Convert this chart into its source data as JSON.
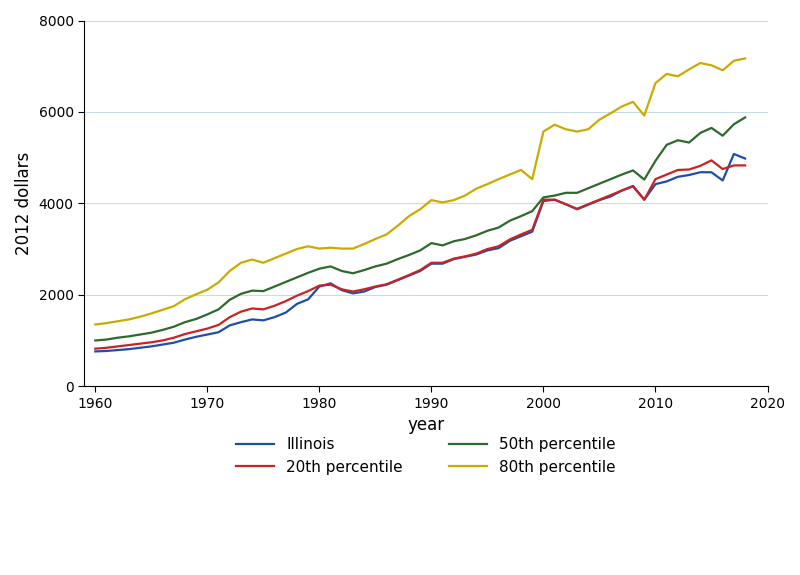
{
  "years": [
    1960,
    1961,
    1962,
    1963,
    1964,
    1965,
    1966,
    1967,
    1968,
    1969,
    1970,
    1971,
    1972,
    1973,
    1974,
    1975,
    1976,
    1977,
    1978,
    1979,
    1980,
    1981,
    1982,
    1983,
    1984,
    1985,
    1986,
    1987,
    1988,
    1989,
    1990,
    1991,
    1992,
    1993,
    1994,
    1995,
    1996,
    1997,
    1998,
    1999,
    2000,
    2001,
    2002,
    2003,
    2004,
    2005,
    2006,
    2007,
    2008,
    2009,
    2010,
    2011,
    2012,
    2013,
    2014,
    2015,
    2016,
    2017,
    2018
  ],
  "illinois": [
    760,
    770,
    790,
    810,
    840,
    870,
    910,
    950,
    1020,
    1080,
    1130,
    1180,
    1330,
    1400,
    1460,
    1440,
    1510,
    1610,
    1800,
    1900,
    2180,
    2250,
    2100,
    2030,
    2070,
    2170,
    2220,
    2320,
    2420,
    2520,
    2680,
    2680,
    2780,
    2830,
    2880,
    2970,
    3020,
    3180,
    3280,
    3380,
    4050,
    4080,
    3980,
    3870,
    3970,
    4070,
    4150,
    4280,
    4380,
    4080,
    4420,
    4480,
    4580,
    4620,
    4680,
    4680,
    4500,
    5080,
    4980
  ],
  "p20": [
    820,
    840,
    870,
    900,
    930,
    960,
    1000,
    1060,
    1140,
    1200,
    1260,
    1340,
    1510,
    1630,
    1700,
    1680,
    1760,
    1860,
    1980,
    2080,
    2200,
    2220,
    2120,
    2070,
    2120,
    2180,
    2230,
    2330,
    2430,
    2540,
    2700,
    2700,
    2790,
    2840,
    2900,
    3000,
    3060,
    3210,
    3320,
    3420,
    4080,
    4080,
    3980,
    3880,
    3980,
    4080,
    4180,
    4280,
    4370,
    4080,
    4530,
    4630,
    4730,
    4740,
    4820,
    4940,
    4750,
    4830,
    4830
  ],
  "p50": [
    1000,
    1020,
    1060,
    1090,
    1130,
    1170,
    1230,
    1300,
    1400,
    1470,
    1570,
    1680,
    1890,
    2020,
    2090,
    2080,
    2180,
    2280,
    2380,
    2480,
    2570,
    2620,
    2520,
    2470,
    2540,
    2620,
    2680,
    2780,
    2870,
    2970,
    3130,
    3080,
    3170,
    3220,
    3300,
    3400,
    3470,
    3620,
    3720,
    3830,
    4130,
    4170,
    4230,
    4230,
    4330,
    4430,
    4530,
    4630,
    4720,
    4520,
    4930,
    5280,
    5380,
    5330,
    5540,
    5650,
    5480,
    5730,
    5880
  ],
  "p80": [
    1350,
    1380,
    1420,
    1460,
    1520,
    1590,
    1670,
    1750,
    1900,
    2010,
    2110,
    2270,
    2520,
    2700,
    2770,
    2700,
    2800,
    2900,
    3000,
    3060,
    3010,
    3030,
    3010,
    3010,
    3110,
    3220,
    3320,
    3510,
    3720,
    3870,
    4070,
    4020,
    4070,
    4170,
    4320,
    4420,
    4530,
    4630,
    4730,
    4530,
    5570,
    5720,
    5620,
    5570,
    5620,
    5830,
    5970,
    6120,
    6220,
    5920,
    6630,
    6830,
    6780,
    6930,
    7070,
    7020,
    6910,
    7120,
    7170
  ],
  "illinois_color": "#1f4eaa",
  "p20_color": "#cc2222",
  "p50_color": "#2d6a2d",
  "p80_color": "#ccaa00",
  "xlabel": "year",
  "ylabel": "2012 dollars",
  "xlim": [
    1959,
    2020
  ],
  "ylim": [
    0,
    8000
  ],
  "yticks": [
    0,
    2000,
    4000,
    6000,
    8000
  ],
  "xticks": [
    1960,
    1970,
    1980,
    1990,
    2000,
    2010,
    2020
  ],
  "legend_labels": [
    "Illinois",
    "20th percentile",
    "50th percentile",
    "80th percentile"
  ],
  "legend_order": [
    0,
    2,
    1,
    3
  ],
  "linewidth": 1.6
}
